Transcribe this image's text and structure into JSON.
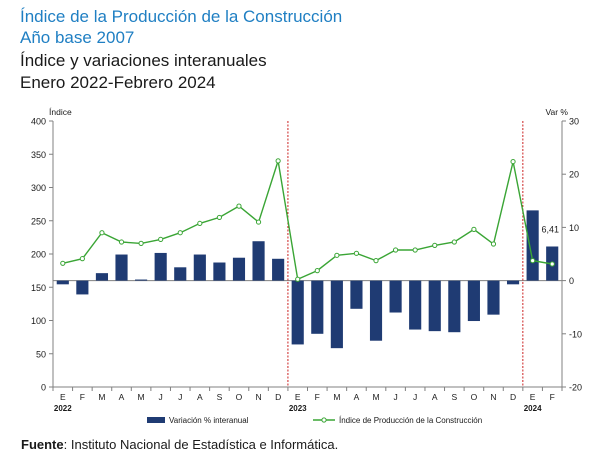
{
  "header": {
    "title_line1": "Índice de la Producción de la Construcción",
    "title_line2": "Año base 2007",
    "subtitle_line1": "Índice y variaciones interanuales",
    "subtitle_line2": "Enero 2022-Febrero 2024"
  },
  "source": {
    "label": "Fuente",
    "text": ": Instituto Nacional de Estadística e Informática."
  },
  "colors": {
    "title": "#1f7fc3",
    "bar": "#1f3b73",
    "line": "#3aa535",
    "marker_fill": "#ffffff",
    "separator": "#cc2222",
    "axis": "#808080"
  },
  "chart_data": {
    "type": "bar",
    "categories": [
      "E",
      "F",
      "M",
      "A",
      "M",
      "J",
      "J",
      "A",
      "S",
      "O",
      "N",
      "D",
      "E",
      "F",
      "M",
      "A",
      "M",
      "J",
      "J",
      "A",
      "S",
      "O",
      "N",
      "D",
      "E",
      "F"
    ],
    "year_labels": [
      "2022",
      "2023",
      "2024"
    ],
    "year_start_index": [
      0,
      12,
      24
    ],
    "separators_before_index": [
      12,
      24
    ],
    "ylabel": "Índice",
    "y2label": "Var %",
    "ylim": [
      0,
      400
    ],
    "yticks": [
      0,
      50,
      100,
      150,
      200,
      250,
      300,
      350,
      400
    ],
    "y2lim": [
      -20,
      30
    ],
    "y2ticks": [
      -20,
      -10,
      0,
      10,
      20,
      30
    ],
    "grid": false,
    "legend_position": "bottom",
    "annotation": {
      "text": "6,41",
      "index": 25
    },
    "series": [
      {
        "name": "Variación % interanual",
        "kind": "bar",
        "axis": "right",
        "values": [
          -0.7,
          -2.6,
          1.4,
          4.9,
          0.2,
          5.2,
          2.5,
          4.9,
          3.4,
          4.3,
          7.4,
          4.1,
          -12.0,
          -10.0,
          -12.7,
          -5.3,
          -11.3,
          -6.0,
          -9.2,
          -9.5,
          -9.7,
          -7.6,
          -6.4,
          -0.7,
          13.2,
          6.41
        ]
      },
      {
        "name": "Índice de Producción de la Construcción",
        "kind": "line",
        "axis": "left",
        "values": [
          186,
          193,
          232,
          218,
          216,
          222,
          232,
          246,
          255,
          272,
          248,
          340,
          162,
          175,
          198,
          201,
          190,
          206,
          206,
          213,
          218,
          237,
          215,
          339,
          190,
          185
        ]
      }
    ]
  }
}
